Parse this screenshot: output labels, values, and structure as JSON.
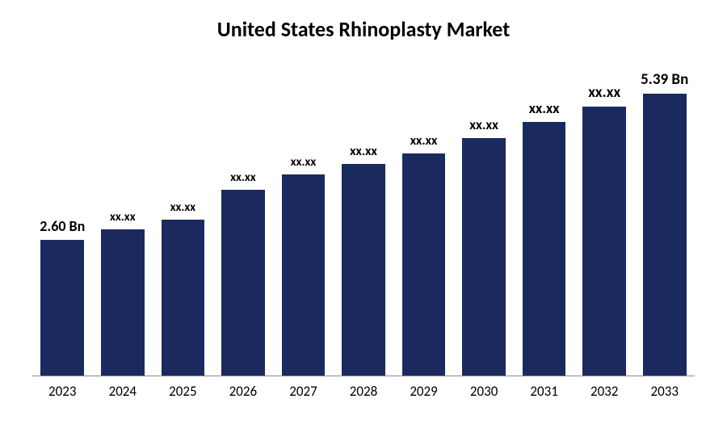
{
  "chart": {
    "type": "bar",
    "title": "United States Rhinoplasty Market",
    "title_fontsize": 26,
    "title_weight": 700,
    "title_color": "#000000",
    "background_color": "#ffffff",
    "axis_line_color": "#888888",
    "bar_color": "#1a2a5e",
    "bar_width_pct": 72,
    "x_tick_fontsize": 17,
    "x_tick_color": "#000000",
    "ylim": [
      0,
      6.0
    ],
    "data": [
      {
        "year": "2023",
        "label": "2.60 Bn",
        "value": 2.6,
        "label_fontsize": 18,
        "label_weight": 700
      },
      {
        "year": "2024",
        "label": "xx.xx",
        "value": 2.8,
        "label_fontsize": 15,
        "label_weight": 700
      },
      {
        "year": "2025",
        "label": "xx.xx",
        "value": 2.99,
        "label_fontsize": 15,
        "label_weight": 700
      },
      {
        "year": "2026",
        "label": "xx.xx",
        "value": 3.55,
        "label_fontsize": 15,
        "label_weight": 700
      },
      {
        "year": "2027",
        "label": "xx.xx",
        "value": 3.85,
        "label_fontsize": 15,
        "label_weight": 700
      },
      {
        "year": "2028",
        "label": "xx.xx",
        "value": 4.05,
        "label_fontsize": 16,
        "label_weight": 700
      },
      {
        "year": "2029",
        "label": "xx.xx",
        "value": 4.25,
        "label_fontsize": 16,
        "label_weight": 700
      },
      {
        "year": "2030",
        "label": "xx.xx",
        "value": 4.55,
        "label_fontsize": 17,
        "label_weight": 700
      },
      {
        "year": "2031",
        "label": "xx.xx",
        "value": 4.85,
        "label_fontsize": 18,
        "label_weight": 700
      },
      {
        "year": "2032",
        "label": "xx.xx",
        "value": 5.15,
        "label_fontsize": 19,
        "label_weight": 700
      },
      {
        "year": "2033",
        "label": "5.39 Bn",
        "value": 5.39,
        "label_fontsize": 19,
        "label_weight": 700
      }
    ]
  }
}
